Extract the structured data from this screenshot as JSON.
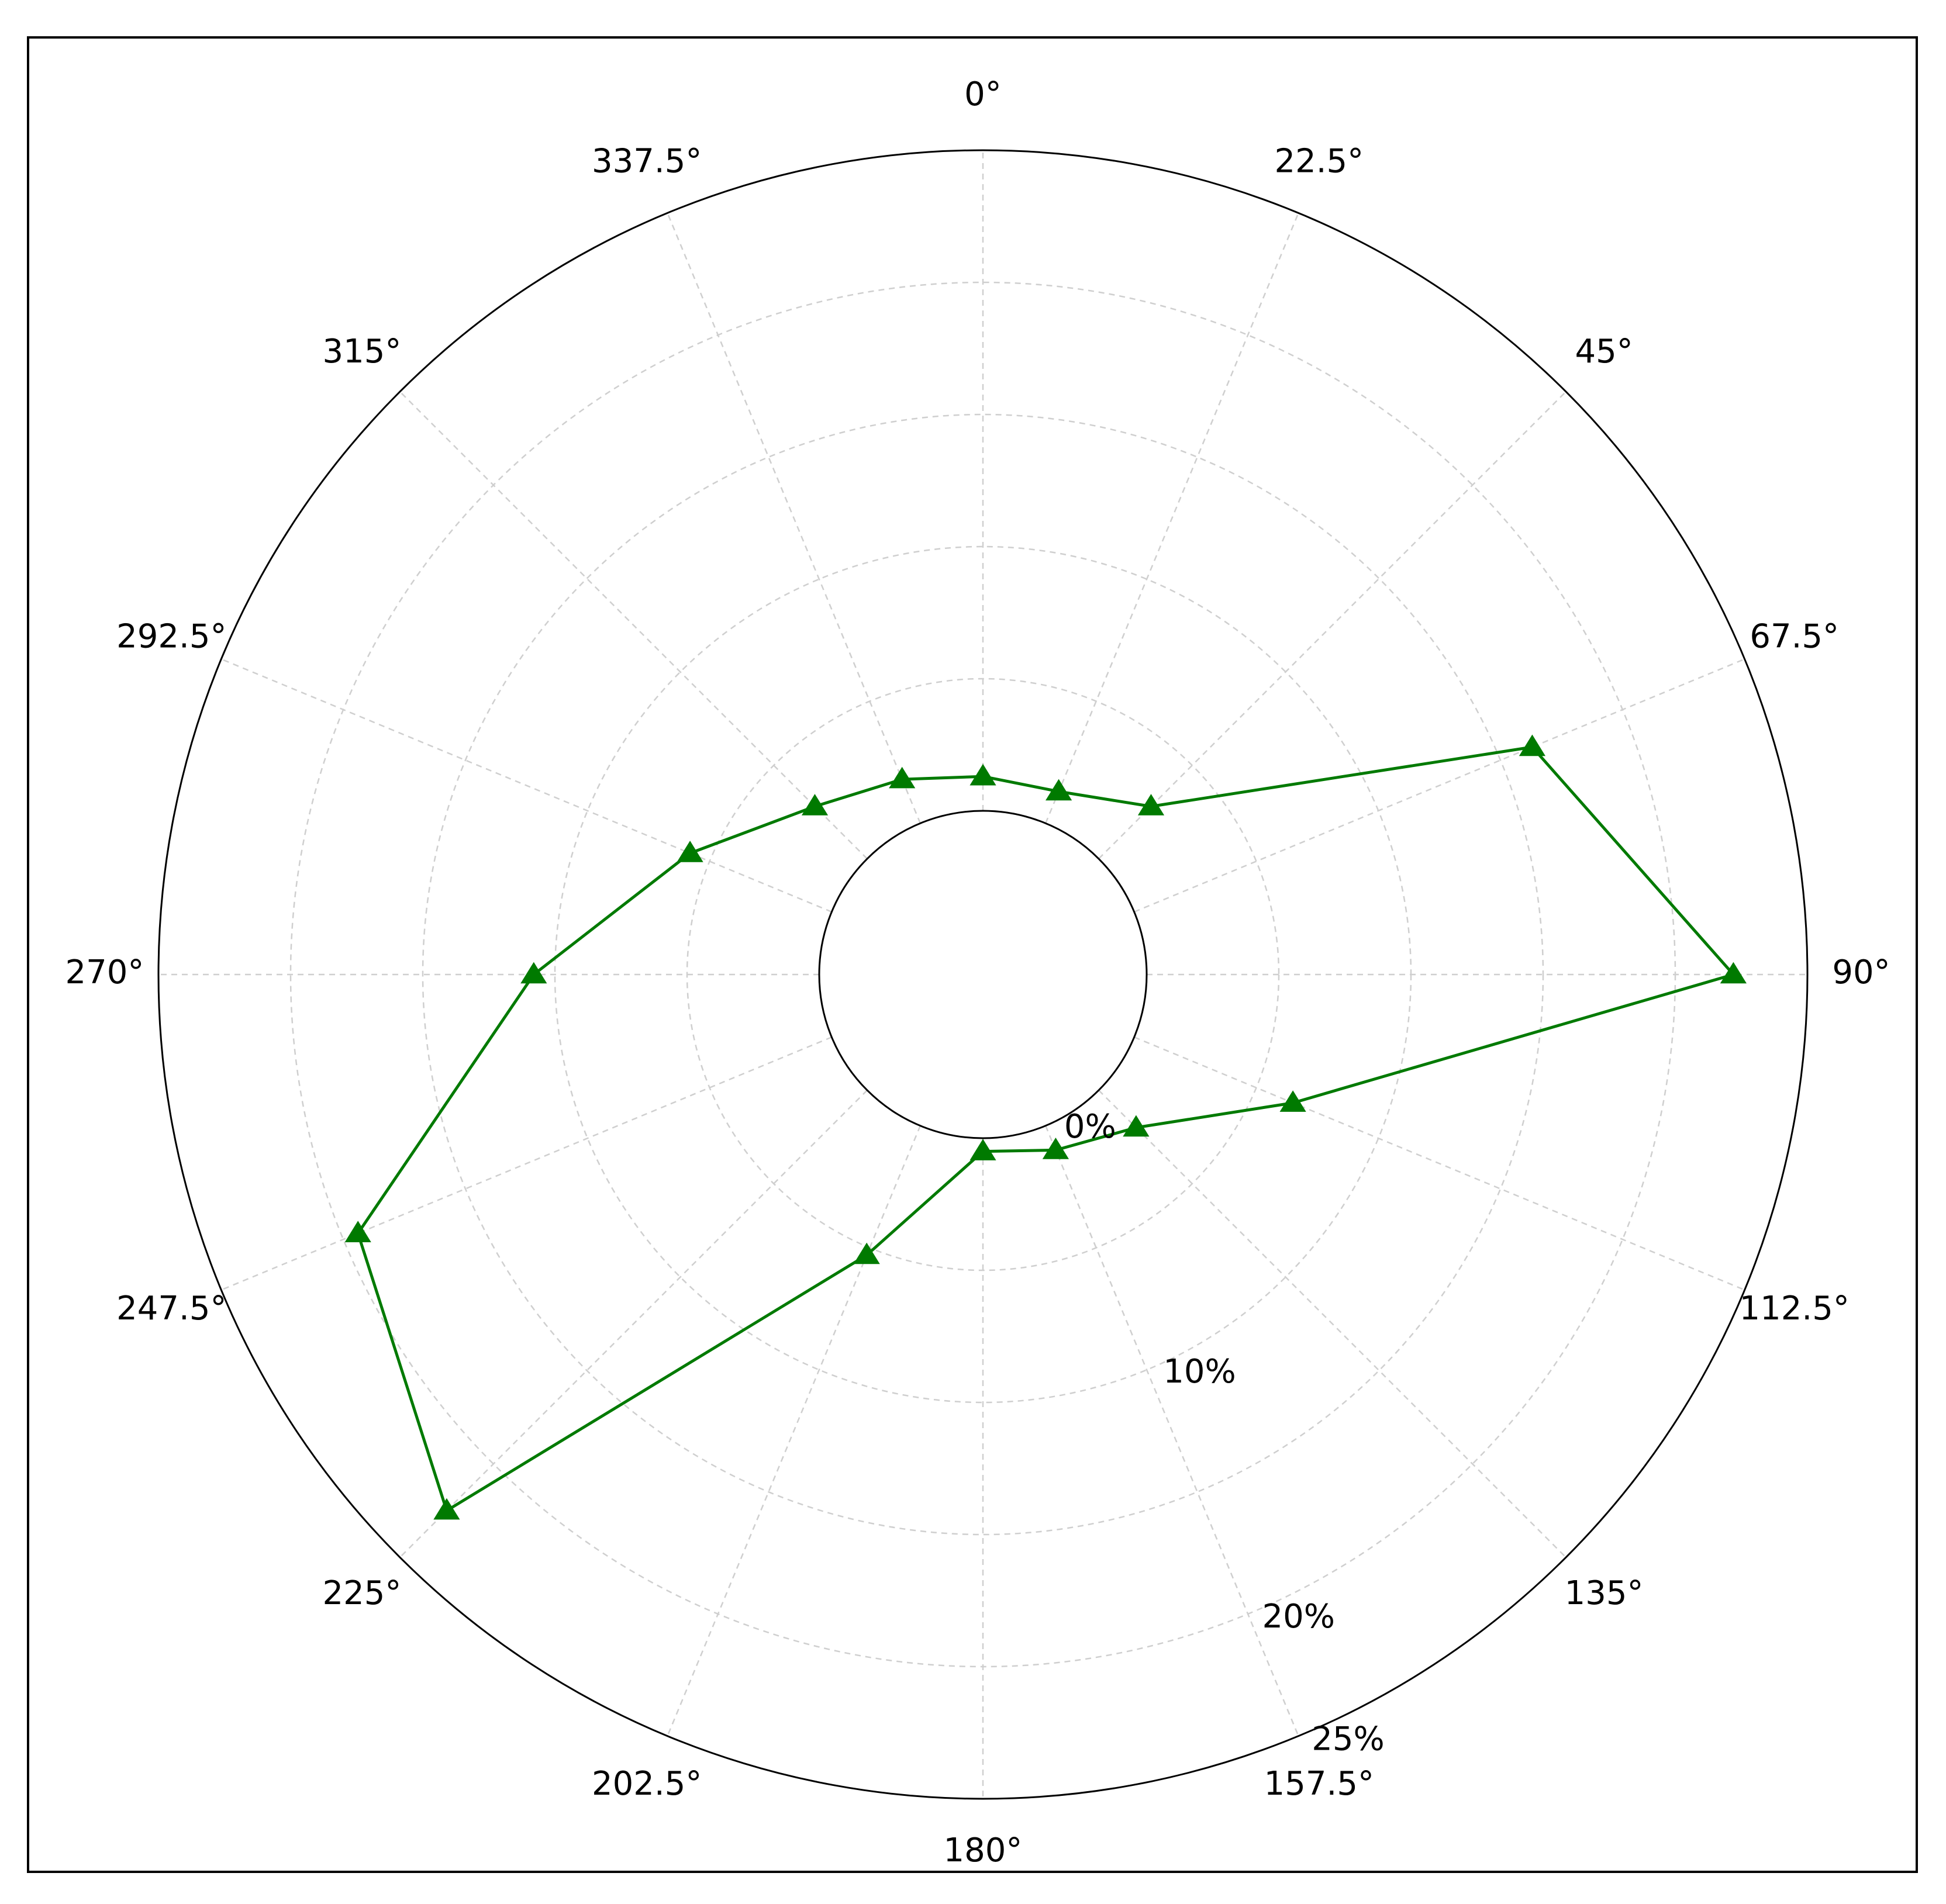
{
  "chart_data": {
    "type": "polar-line",
    "angle_labels": [
      "0°",
      "22.5°",
      "45°",
      "67.5°",
      "90°",
      "112.5°",
      "135°",
      "157.5°",
      "180°",
      "202.5°",
      "225°",
      "247.5°",
      "270°",
      "292.5°",
      "315°",
      "337.5°"
    ],
    "radial_tick_labels": [
      {
        "value": 0,
        "label": "0%"
      },
      {
        "value": 10,
        "label": "10%"
      },
      {
        "value": 20,
        "label": "20%"
      },
      {
        "value": 25,
        "label": "25%"
      }
    ],
    "r_range": [
      0,
      25
    ],
    "grid": true,
    "series": [
      {
        "color": "#007a00",
        "marker": "triangle",
        "points": [
          {
            "angle": 0,
            "value": 1.3
          },
          {
            "angle": 22.5,
            "value": 1.3
          },
          {
            "angle": 45,
            "value": 2.8
          },
          {
            "angle": 67.5,
            "value": 16.3
          },
          {
            "angle": 90,
            "value": 22.2
          },
          {
            "angle": 112.5,
            "value": 6.5
          },
          {
            "angle": 135,
            "value": 2.0
          },
          {
            "angle": 157.5,
            "value": 1.0
          },
          {
            "angle": 180,
            "value": 0.5
          },
          {
            "angle": 202.5,
            "value": 5.3
          },
          {
            "angle": 225,
            "value": 22.5
          },
          {
            "angle": 247.5,
            "value": 19.4
          },
          {
            "angle": 270,
            "value": 10.8
          },
          {
            "angle": 292.5,
            "value": 5.8
          },
          {
            "angle": 315,
            "value": 2.8
          },
          {
            "angle": 337.5,
            "value": 1.8
          }
        ]
      }
    ]
  }
}
